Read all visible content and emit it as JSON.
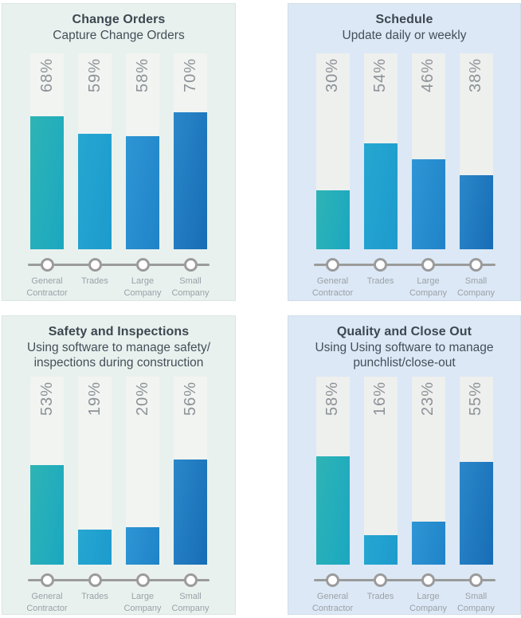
{
  "categories": [
    "General Contractor",
    "Trades",
    "Large Company",
    "Small Company"
  ],
  "chart_data": [
    {
      "type": "bar",
      "title": "Change Orders",
      "subtitle": "Capture Change Orders",
      "categories": [
        "General Contractor",
        "Trades",
        "Large Company",
        "Small Company"
      ],
      "values": [
        68,
        59,
        58,
        70
      ],
      "unit": "%",
      "ylim": [
        0,
        100
      ],
      "grid": false,
      "value_labels": "rotated-90-above-bars",
      "theme": "mint"
    },
    {
      "type": "bar",
      "title": "Schedule",
      "subtitle": "Update daily or weekly",
      "categories": [
        "General Contractor",
        "Trades",
        "Large Company",
        "Small Company"
      ],
      "values": [
        30,
        54,
        46,
        38
      ],
      "unit": "%",
      "ylim": [
        0,
        100
      ],
      "grid": false,
      "value_labels": "rotated-90-above-bars",
      "theme": "blue"
    },
    {
      "type": "bar",
      "title": "Safety and Inspections",
      "subtitle": "Using software to manage safety/ inspections during construction",
      "categories": [
        "General Contractor",
        "Trades",
        "Large Company",
        "Small Company"
      ],
      "values": [
        53,
        19,
        20,
        56
      ],
      "unit": "%",
      "ylim": [
        0,
        100
      ],
      "grid": false,
      "value_labels": "rotated-90-above-bars",
      "theme": "mint"
    },
    {
      "type": "bar",
      "title": "Quality and Close Out",
      "subtitle": "Using Using software to manage punchlist/close-out",
      "categories": [
        "General Contractor",
        "Trades",
        "Large Company",
        "Small Company"
      ],
      "values": [
        58,
        16,
        23,
        55
      ],
      "unit": "%",
      "ylim": [
        0,
        100
      ],
      "grid": false,
      "value_labels": "rotated-90-above-bars",
      "theme": "blue"
    }
  ],
  "style": {
    "bar_gradients": [
      [
        "#2eb4b5",
        "#1ba7c1"
      ],
      [
        "#25a7d1",
        "#1d9bcd"
      ],
      [
        "#2e96d5",
        "#2083c8"
      ],
      [
        "#2b87c9",
        "#176db6"
      ]
    ],
    "themes": {
      "mint": {
        "bg": "#e9f1ee",
        "track": "#f1f4f1"
      },
      "blue": {
        "bg": "#dce8f5",
        "track": "#eef0ee"
      }
    },
    "vars": {
      "page-bg": "#ffffff",
      "title-color": "#3c4750",
      "subtitle-color": "#434f59",
      "pct-color": "#8c9298",
      "axis-color": "#9b9b9b",
      "dot-fill": "#ffffff",
      "cat-color": "#9aa1a8"
    }
  }
}
